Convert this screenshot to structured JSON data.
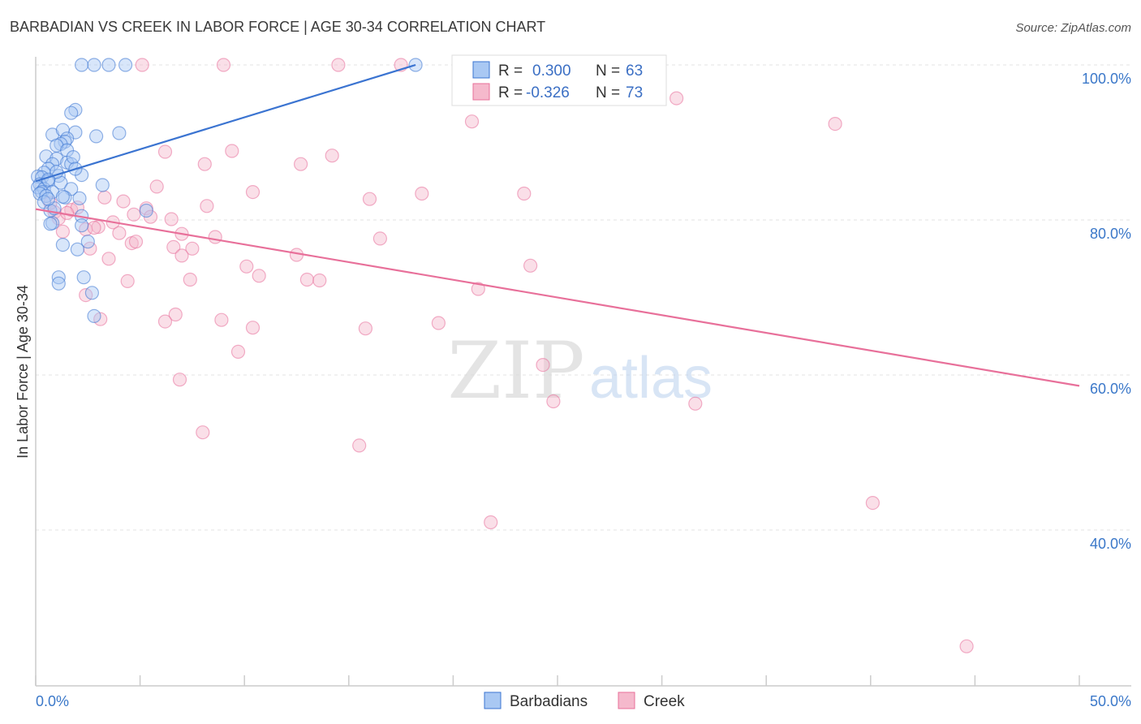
{
  "chart_data": {
    "type": "scatter",
    "title": "BARBADIAN VS CREEK IN LABOR FORCE | AGE 30-34 CORRELATION CHART",
    "source": "Source: ZipAtlas.com",
    "xlabel": "",
    "ylabel": "In Labor Force | Age 30-34",
    "xlim": [
      0,
      50
    ],
    "ylim": [
      20,
      102
    ],
    "x_tick_labels": [
      "0.0%",
      "50.0%"
    ],
    "y_ticks": [
      {
        "value": 40,
        "label": "40.0%"
      },
      {
        "value": 60,
        "label": "60.0%"
      },
      {
        "value": 80,
        "label": "80.0%"
      },
      {
        "value": 100,
        "label": "100.0%"
      }
    ],
    "watermark": {
      "zip": "ZIP",
      "atlas": "atlas"
    },
    "legend": {
      "r_label": "R =",
      "n_label": "N =",
      "entries": [
        {
          "name": "Barbadians",
          "r": "0.300",
          "n": "63"
        },
        {
          "name": "Creek",
          "r": "-0.326",
          "n": "73"
        }
      ]
    },
    "series": [
      {
        "name": "Barbadians",
        "color": "#3b74d1",
        "fill": "#a9c8f3",
        "trend": {
          "x0": 0.0,
          "y0": 85.0,
          "x1": 18.2,
          "y1": 100.0
        },
        "points": [
          [
            2.2,
            100
          ],
          [
            2.8,
            100
          ],
          [
            3.5,
            100
          ],
          [
            4.3,
            100
          ],
          [
            18.2,
            100
          ],
          [
            1.9,
            94.2
          ],
          [
            1.7,
            93.8
          ],
          [
            2.9,
            90.8
          ],
          [
            4.0,
            91.2
          ],
          [
            0.8,
            91.0
          ],
          [
            1.3,
            91.6
          ],
          [
            1.9,
            91.3
          ],
          [
            1.5,
            90.5
          ],
          [
            1.4,
            90.1
          ],
          [
            1.2,
            89.8
          ],
          [
            1.0,
            89.6
          ],
          [
            1.5,
            89.0
          ],
          [
            0.5,
            88.2
          ],
          [
            1.0,
            87.9
          ],
          [
            0.8,
            87.2
          ],
          [
            1.5,
            87.4
          ],
          [
            1.7,
            87.2
          ],
          [
            0.6,
            86.6
          ],
          [
            0.4,
            86.1
          ],
          [
            1.1,
            85.7
          ],
          [
            2.2,
            85.8
          ],
          [
            0.1,
            85.6
          ],
          [
            0.3,
            85.5
          ],
          [
            0.6,
            85.0
          ],
          [
            1.2,
            84.8
          ],
          [
            0.2,
            84.6
          ],
          [
            1.7,
            84.0
          ],
          [
            0.1,
            84.2
          ],
          [
            0.4,
            84.0
          ],
          [
            0.3,
            83.6
          ],
          [
            0.8,
            83.6
          ],
          [
            0.2,
            83.4
          ],
          [
            0.5,
            83.1
          ],
          [
            1.4,
            82.9
          ],
          [
            2.1,
            82.8
          ],
          [
            0.4,
            82.3
          ],
          [
            0.7,
            81.2
          ],
          [
            0.9,
            81.5
          ],
          [
            5.3,
            81.2
          ],
          [
            2.2,
            80.5
          ],
          [
            0.8,
            79.6
          ],
          [
            2.2,
            79.3
          ],
          [
            0.7,
            79.5
          ],
          [
            2.5,
            77.2
          ],
          [
            1.3,
            76.8
          ],
          [
            2.0,
            76.2
          ],
          [
            1.1,
            72.6
          ],
          [
            2.3,
            72.6
          ],
          [
            1.1,
            71.8
          ],
          [
            2.7,
            70.6
          ],
          [
            2.8,
            67.6
          ],
          [
            0.6,
            82.7
          ],
          [
            1.3,
            83.0
          ],
          [
            1.8,
            88.1
          ],
          [
            1.0,
            86.2
          ],
          [
            0.6,
            85.2
          ],
          [
            1.9,
            86.6
          ],
          [
            3.2,
            84.5
          ]
        ]
      },
      {
        "name": "Creek",
        "color": "#e8709a",
        "fill": "#f5b9cc",
        "trend": {
          "x0": 0.0,
          "y0": 81.4,
          "x1": 50.0,
          "y1": 58.6
        },
        "points": [
          [
            5.1,
            100
          ],
          [
            9.0,
            100
          ],
          [
            14.5,
            100
          ],
          [
            17.5,
            100
          ],
          [
            30.7,
            95.7
          ],
          [
            20.9,
            92.7
          ],
          [
            38.3,
            92.4
          ],
          [
            6.2,
            88.8
          ],
          [
            9.4,
            88.9
          ],
          [
            14.2,
            88.3
          ],
          [
            8.1,
            87.2
          ],
          [
            12.7,
            87.2
          ],
          [
            5.8,
            84.3
          ],
          [
            10.4,
            83.6
          ],
          [
            16.0,
            82.7
          ],
          [
            18.5,
            83.4
          ],
          [
            23.4,
            83.4
          ],
          [
            3.3,
            82.9
          ],
          [
            4.2,
            82.4
          ],
          [
            8.2,
            81.8
          ],
          [
            0.9,
            81.0
          ],
          [
            1.7,
            81.3
          ],
          [
            5.3,
            81.5
          ],
          [
            5.5,
            80.4
          ],
          [
            3.7,
            79.7
          ],
          [
            2.4,
            78.8
          ],
          [
            1.3,
            78.5
          ],
          [
            4.0,
            78.3
          ],
          [
            7.0,
            78.2
          ],
          [
            8.6,
            77.8
          ],
          [
            16.5,
            77.6
          ],
          [
            4.6,
            77.0
          ],
          [
            4.8,
            77.2
          ],
          [
            6.6,
            76.5
          ],
          [
            7.5,
            76.3
          ],
          [
            2.6,
            76.3
          ],
          [
            7.0,
            75.4
          ],
          [
            12.5,
            75.5
          ],
          [
            3.5,
            75.0
          ],
          [
            10.1,
            74.0
          ],
          [
            23.7,
            74.1
          ],
          [
            10.7,
            72.8
          ],
          [
            4.4,
            72.1
          ],
          [
            7.4,
            72.3
          ],
          [
            13.0,
            72.3
          ],
          [
            13.6,
            72.2
          ],
          [
            21.2,
            71.1
          ],
          [
            2.4,
            70.3
          ],
          [
            6.7,
            67.8
          ],
          [
            3.1,
            67.2
          ],
          [
            6.2,
            66.9
          ],
          [
            8.9,
            67.1
          ],
          [
            10.4,
            66.1
          ],
          [
            15.8,
            66.0
          ],
          [
            19.3,
            66.7
          ],
          [
            9.7,
            63.0
          ],
          [
            24.3,
            61.3
          ],
          [
            6.9,
            59.4
          ],
          [
            24.8,
            56.6
          ],
          [
            31.6,
            56.3
          ],
          [
            8.0,
            52.6
          ],
          [
            15.5,
            50.9
          ],
          [
            40.1,
            43.5
          ],
          [
            21.8,
            41.0
          ],
          [
            44.6,
            25.0
          ],
          [
            1.1,
            80.2
          ],
          [
            2.0,
            81.6
          ],
          [
            4.7,
            80.7
          ],
          [
            3.0,
            79.1
          ],
          [
            6.5,
            80.1
          ],
          [
            2.8,
            79.0
          ],
          [
            0.7,
            82.2
          ],
          [
            1.5,
            80.9
          ]
        ]
      }
    ]
  }
}
